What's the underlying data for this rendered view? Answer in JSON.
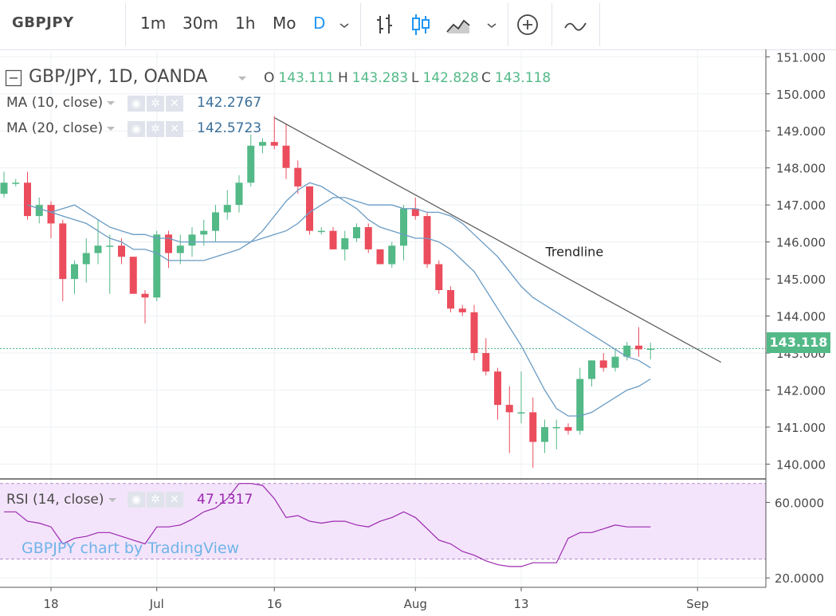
{
  "toolbar": {
    "symbol": "GBPJPY",
    "intervals": [
      "1m",
      "30m",
      "1h",
      "Mo",
      "D"
    ],
    "active_interval": "D",
    "icons": [
      "chevron-down-icon",
      "bar-style-icon",
      "candles-style-icon",
      "area-style-icon",
      "chevron-down-icon",
      "add-indicator-icon",
      "compare-icon"
    ]
  },
  "legend": {
    "title": "GBP/JPY, 1D, OANDA",
    "ohlc": [
      {
        "k": "O",
        "v": "143.111"
      },
      {
        "k": "H",
        "v": "143.283"
      },
      {
        "k": "L",
        "v": "142.828"
      },
      {
        "k": "C",
        "v": "143.118"
      }
    ],
    "ma10_label": "MA (10, close)",
    "ma10_value": "142.2767",
    "ma20_label": "MA (20, close)",
    "ma20_value": "142.5723",
    "rsi_label": "RSI (14, close)",
    "rsi_value": "47.1317"
  },
  "last_price_tag": "143.118",
  "annotation": "Trendline",
  "watermark": "GBPJPY chart by TradingView",
  "colors": {
    "up": "#53b987",
    "down": "#eb4d5c",
    "ma10": "#6a9bc3",
    "ma20": "#6a9bc3",
    "rsi": "#9c27b0",
    "rsi_band": "#f3e4fb",
    "trendline": "#555555"
  },
  "chart_data": [
    {
      "type": "candlestick",
      "title": "GBP/JPY, 1D, OANDA",
      "ylim": [
        139.6,
        151.2
      ],
      "yticks": [
        "151.000",
        "150.000",
        "149.000",
        "148.000",
        "147.000",
        "146.000",
        "145.000",
        "144.000",
        "143.000",
        "142.000",
        "141.000",
        "140.000"
      ],
      "xticks": [
        {
          "label": "18",
          "i": 4
        },
        {
          "label": "Jul",
          "i": 13
        },
        {
          "label": "16",
          "i": 23
        },
        {
          "label": "Aug",
          "i": 35
        },
        {
          "label": "13",
          "i": 44
        },
        {
          "label": "Sep",
          "i": 59
        }
      ],
      "x_count": 62,
      "candles": [
        {
          "o": 147.3,
          "h": 147.9,
          "l": 147.2,
          "c": 147.6
        },
        {
          "o": 147.6,
          "h": 147.7,
          "l": 147.5,
          "c": 147.6
        },
        {
          "o": 147.6,
          "h": 147.9,
          "l": 146.6,
          "c": 146.7
        },
        {
          "o": 146.7,
          "h": 147.2,
          "l": 146.5,
          "c": 147.0
        },
        {
          "o": 147.0,
          "h": 147.1,
          "l": 146.1,
          "c": 146.5
        },
        {
          "o": 146.5,
          "h": 146.6,
          "l": 144.4,
          "c": 145.0
        },
        {
          "o": 145.0,
          "h": 145.5,
          "l": 144.6,
          "c": 145.4
        },
        {
          "o": 145.4,
          "h": 146.1,
          "l": 144.9,
          "c": 145.7
        },
        {
          "o": 145.7,
          "h": 146.6,
          "l": 145.4,
          "c": 145.9
        },
        {
          "o": 145.9,
          "h": 146.2,
          "l": 144.6,
          "c": 145.9
        },
        {
          "o": 145.9,
          "h": 146.1,
          "l": 145.4,
          "c": 145.6
        },
        {
          "o": 145.6,
          "h": 145.6,
          "l": 144.6,
          "c": 144.6
        },
        {
          "o": 144.6,
          "h": 144.7,
          "l": 143.8,
          "c": 144.5
        },
        {
          "o": 144.5,
          "h": 146.3,
          "l": 144.4,
          "c": 146.2
        },
        {
          "o": 146.2,
          "h": 146.3,
          "l": 145.3,
          "c": 145.7
        },
        {
          "o": 145.7,
          "h": 146.2,
          "l": 145.4,
          "c": 145.9
        },
        {
          "o": 145.9,
          "h": 146.4,
          "l": 145.6,
          "c": 146.2
        },
        {
          "o": 146.2,
          "h": 146.6,
          "l": 145.9,
          "c": 146.3
        },
        {
          "o": 146.3,
          "h": 147.0,
          "l": 146.0,
          "c": 146.8
        },
        {
          "o": 146.8,
          "h": 147.4,
          "l": 146.6,
          "c": 147.0
        },
        {
          "o": 147.0,
          "h": 147.8,
          "l": 146.8,
          "c": 147.6
        },
        {
          "o": 147.6,
          "h": 148.9,
          "l": 147.5,
          "c": 148.6
        },
        {
          "o": 148.6,
          "h": 148.8,
          "l": 148.4,
          "c": 148.7
        },
        {
          "o": 148.7,
          "h": 149.4,
          "l": 148.5,
          "c": 148.6
        },
        {
          "o": 148.6,
          "h": 149.2,
          "l": 147.7,
          "c": 148.0
        },
        {
          "o": 148.0,
          "h": 148.2,
          "l": 147.3,
          "c": 147.5
        },
        {
          "o": 147.5,
          "h": 147.5,
          "l": 146.2,
          "c": 146.3
        },
        {
          "o": 146.3,
          "h": 146.4,
          "l": 146.2,
          "c": 146.3
        },
        {
          "o": 146.3,
          "h": 146.4,
          "l": 145.8,
          "c": 145.8
        },
        {
          "o": 145.8,
          "h": 146.3,
          "l": 145.5,
          "c": 146.1
        },
        {
          "o": 146.1,
          "h": 146.5,
          "l": 146.0,
          "c": 146.4
        },
        {
          "o": 146.4,
          "h": 146.5,
          "l": 145.7,
          "c": 145.8
        },
        {
          "o": 145.8,
          "h": 145.8,
          "l": 145.4,
          "c": 145.4
        },
        {
          "o": 145.4,
          "h": 146.0,
          "l": 145.3,
          "c": 145.9
        },
        {
          "o": 145.9,
          "h": 147.0,
          "l": 145.5,
          "c": 146.9
        },
        {
          "o": 146.9,
          "h": 147.2,
          "l": 146.6,
          "c": 146.7
        },
        {
          "o": 146.7,
          "h": 146.8,
          "l": 145.3,
          "c": 145.4
        },
        {
          "o": 145.4,
          "h": 145.5,
          "l": 144.6,
          "c": 144.7
        },
        {
          "o": 144.7,
          "h": 144.8,
          "l": 144.1,
          "c": 144.2
        },
        {
          "o": 144.2,
          "h": 144.3,
          "l": 144.0,
          "c": 144.1
        },
        {
          "o": 144.1,
          "h": 144.3,
          "l": 142.8,
          "c": 143.0
        },
        {
          "o": 143.0,
          "h": 143.4,
          "l": 142.4,
          "c": 142.5
        },
        {
          "o": 142.5,
          "h": 142.6,
          "l": 141.2,
          "c": 141.6
        },
        {
          "o": 141.6,
          "h": 142.1,
          "l": 140.3,
          "c": 141.4
        },
        {
          "o": 141.4,
          "h": 142.5,
          "l": 141.1,
          "c": 141.4
        },
        {
          "o": 141.4,
          "h": 141.8,
          "l": 139.9,
          "c": 140.6
        },
        {
          "o": 140.6,
          "h": 141.2,
          "l": 140.3,
          "c": 141.0
        },
        {
          "o": 141.0,
          "h": 141.2,
          "l": 140.4,
          "c": 141.0
        },
        {
          "o": 141.0,
          "h": 141.1,
          "l": 140.8,
          "c": 140.9
        },
        {
          "o": 140.9,
          "h": 142.6,
          "l": 140.8,
          "c": 142.3
        },
        {
          "o": 142.3,
          "h": 142.8,
          "l": 142.1,
          "c": 142.8
        },
        {
          "o": 142.8,
          "h": 143.0,
          "l": 142.5,
          "c": 142.6
        },
        {
          "o": 142.6,
          "h": 143.1,
          "l": 142.5,
          "c": 142.9
        },
        {
          "o": 142.9,
          "h": 143.3,
          "l": 142.8,
          "c": 143.2
        },
        {
          "o": 143.2,
          "h": 143.7,
          "l": 142.9,
          "c": 143.1
        },
        {
          "o": 143.1,
          "h": 143.283,
          "l": 142.828,
          "c": 143.118
        }
      ],
      "ma10": [
        147.0,
        146.9,
        146.8,
        146.7,
        146.6,
        146.5,
        146.3,
        146.1,
        146.0,
        145.8,
        145.8,
        145.7,
        145.5,
        145.5,
        145.5,
        145.5,
        145.6,
        145.7,
        145.8,
        146.0,
        146.3,
        146.7,
        147.1,
        147.4,
        147.6,
        147.5,
        147.3,
        147.1,
        146.9,
        146.6,
        146.4,
        146.3,
        146.2,
        146.1,
        146.1,
        146.0,
        145.8,
        145.5,
        145.2,
        144.7,
        144.2,
        143.7,
        143.2,
        142.6,
        142.0,
        141.5,
        141.3,
        141.3,
        141.4,
        141.6,
        141.8,
        142.0,
        142.1,
        142.3
      ],
      "ma20": [
        146.8,
        146.9,
        147.0,
        146.8,
        146.6,
        146.4,
        146.3,
        146.2,
        146.2,
        146.1,
        146.1,
        146.0,
        146.0,
        146.0,
        146.0,
        146.0,
        146.0,
        146.0,
        146.1,
        146.2,
        146.3,
        146.5,
        146.8,
        147.0,
        147.2,
        147.2,
        147.1,
        147.0,
        147.0,
        147.0,
        146.9,
        146.9,
        146.8,
        146.8,
        146.7,
        146.5,
        146.2,
        145.9,
        145.6,
        145.2,
        144.8,
        144.5,
        144.3,
        144.1,
        143.9,
        143.7,
        143.5,
        143.3,
        143.1,
        142.9,
        142.8,
        142.6
      ],
      "last_price": 143.118
    },
    {
      "type": "line",
      "title": "RSI (14, close)",
      "ylim": [
        15,
        72
      ],
      "yticks": [
        "60.0000",
        "20.0000"
      ],
      "band": [
        30,
        70
      ],
      "values": [
        55,
        55,
        50,
        49,
        47,
        38,
        41,
        42,
        44,
        44,
        42,
        40,
        38,
        47,
        47,
        48,
        51,
        55,
        57,
        62,
        70,
        70,
        69,
        62,
        52,
        53,
        50,
        49,
        50,
        50,
        48,
        47,
        50,
        52,
        55,
        52,
        46,
        40,
        38,
        34,
        32,
        29,
        27,
        26,
        26,
        28,
        28,
        28,
        41,
        44,
        44,
        46,
        48,
        47,
        47,
        47
      ]
    }
  ]
}
